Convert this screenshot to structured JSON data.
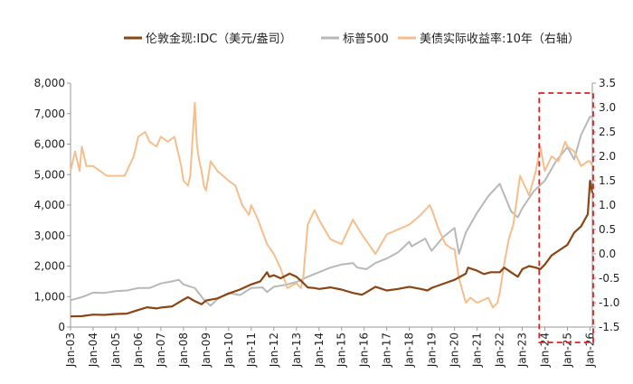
{
  "chart_data": {
    "type": "line",
    "title": "",
    "xlabel": "",
    "ylabel_left": "",
    "ylabel_right": "",
    "x_range": [
      2003.0,
      2026.1
    ],
    "ylim_left": [
      0,
      8000
    ],
    "ylim_right": [
      -1.5,
      3.5
    ],
    "left_ticks": [
      "0",
      "1,000",
      "2,000",
      "3,000",
      "4,000",
      "5,000",
      "6,000",
      "7,000",
      "8,000"
    ],
    "left_tick_values": [
      0,
      1000,
      2000,
      3000,
      4000,
      5000,
      6000,
      7000,
      8000
    ],
    "right_ticks": [
      "-1.5",
      "-1.0",
      "-0.5",
      "0.0",
      "0.5",
      "1.0",
      "1.5",
      "2.0",
      "2.5",
      "3.0",
      "3.5"
    ],
    "right_tick_values": [
      -1.5,
      -1.0,
      -0.5,
      0.0,
      0.5,
      1.0,
      1.5,
      2.0,
      2.5,
      3.0,
      3.5
    ],
    "x_ticks": [
      "Jan-03",
      "Jan-04",
      "Jan-05",
      "Jan-06",
      "Jan-07",
      "Jan-08",
      "Jan-09",
      "Jan-10",
      "Jan-11",
      "Jan-12",
      "Jan-13",
      "Jan-14",
      "Jan-15",
      "Jan-16",
      "Jan-17",
      "Jan-18",
      "Jan-19",
      "Jan-20",
      "Jan-21",
      "Jan-22",
      "Jan-23",
      "Jan-24",
      "Jan-25",
      "Jan-26"
    ],
    "x_tick_values": [
      2003,
      2004,
      2005,
      2006,
      2007,
      2008,
      2009,
      2010,
      2011,
      2012,
      2013,
      2014,
      2015,
      2016,
      2017,
      2018,
      2019,
      2020,
      2021,
      2022,
      2023,
      2024,
      2025,
      2026
    ],
    "legend_position": "top",
    "series": [
      {
        "name": "伦敦金现:IDC（美元/盎司）",
        "axis": "left",
        "color": "#8B4513",
        "x": [
          2003.0,
          2003.5,
          2004.0,
          2004.5,
          2005.0,
          2005.5,
          2006.0,
          2006.4,
          2006.8,
          2007.0,
          2007.5,
          2008.0,
          2008.2,
          2008.5,
          2008.8,
          2009.0,
          2009.5,
          2010.0,
          2010.5,
          2011.0,
          2011.4,
          2011.7,
          2011.8,
          2012.0,
          2012.3,
          2012.7,
          2013.0,
          2013.3,
          2013.5,
          2013.8,
          2014.0,
          2014.5,
          2015.0,
          2015.5,
          2015.9,
          2016.0,
          2016.5,
          2017.0,
          2017.5,
          2018.0,
          2018.5,
          2018.8,
          2019.0,
          2019.5,
          2020.0,
          2020.5,
          2020.6,
          2020.8,
          2021.0,
          2021.3,
          2021.6,
          2022.0,
          2022.2,
          2022.5,
          2022.8,
          2023.0,
          2023.3,
          2023.6,
          2023.8,
          2024.0,
          2024.3,
          2024.6,
          2025.0,
          2025.3,
          2025.6,
          2025.9,
          2026.0,
          2026.1
        ],
        "values": [
          350,
          360,
          410,
          400,
          430,
          440,
          560,
          650,
          610,
          640,
          680,
          900,
          980,
          850,
          750,
          870,
          940,
          1100,
          1230,
          1400,
          1500,
          1800,
          1650,
          1700,
          1600,
          1750,
          1650,
          1450,
          1300,
          1280,
          1250,
          1300,
          1230,
          1120,
          1060,
          1100,
          1320,
          1200,
          1250,
          1320,
          1250,
          1200,
          1290,
          1420,
          1550,
          1750,
          1950,
          1900,
          1850,
          1740,
          1800,
          1800,
          1950,
          1800,
          1650,
          1900,
          2000,
          1950,
          1900,
          2050,
          2350,
          2500,
          2700,
          3100,
          3300,
          3700,
          4800,
          4400
        ]
      },
      {
        "name": "标普500",
        "axis": "left",
        "color": "#B8B8B8",
        "x": [
          2003.0,
          2003.5,
          2004.0,
          2004.5,
          2005.0,
          2005.5,
          2006.0,
          2006.5,
          2007.0,
          2007.5,
          2007.8,
          2008.0,
          2008.5,
          2008.9,
          2009.2,
          2009.5,
          2010.0,
          2010.5,
          2011.0,
          2011.5,
          2011.7,
          2012.0,
          2012.5,
          2013.0,
          2013.5,
          2014.0,
          2014.5,
          2015.0,
          2015.5,
          2015.7,
          2016.1,
          2016.5,
          2017.0,
          2017.5,
          2018.0,
          2018.1,
          2018.7,
          2018.98,
          2019.5,
          2020.0,
          2020.2,
          2020.5,
          2021.0,
          2021.5,
          2022.0,
          2022.5,
          2022.8,
          2023.0,
          2023.5,
          2024.0,
          2024.5,
          2025.0,
          2025.3,
          2025.6,
          2026.0,
          2026.1
        ],
        "values": [
          880,
          980,
          1130,
          1120,
          1180,
          1200,
          1280,
          1280,
          1430,
          1500,
          1550,
          1400,
          1280,
          900,
          700,
          920,
          1120,
          1050,
          1280,
          1300,
          1150,
          1320,
          1380,
          1480,
          1650,
          1800,
          1950,
          2050,
          2100,
          1950,
          1900,
          2100,
          2250,
          2450,
          2800,
          2650,
          2900,
          2500,
          2950,
          3250,
          2400,
          3100,
          3750,
          4300,
          4700,
          3800,
          3600,
          3900,
          4450,
          4800,
          5450,
          5900,
          5500,
          6300,
          6900,
          6900
        ]
      },
      {
        "name": "美债实际收益率:10年（右轴）",
        "axis": "right",
        "color": "#F5BE8C",
        "x": [
          2003.0,
          2003.2,
          2003.4,
          2003.5,
          2003.7,
          2004.0,
          2004.3,
          2004.6,
          2005.0,
          2005.4,
          2005.8,
          2006.0,
          2006.3,
          2006.5,
          2006.8,
          2007.0,
          2007.3,
          2007.6,
          2007.9,
          2008.0,
          2008.2,
          2008.3,
          2008.5,
          2008.6,
          2008.7,
          2008.8,
          2008.9,
          2009.0,
          2009.2,
          2009.5,
          2010.0,
          2010.3,
          2010.6,
          2010.9,
          2011.0,
          2011.3,
          2011.7,
          2012.0,
          2012.3,
          2012.6,
          2013.0,
          2013.2,
          2013.3,
          2013.5,
          2013.8,
          2014.0,
          2014.5,
          2015.0,
          2015.5,
          2015.9,
          2016.2,
          2016.5,
          2017.0,
          2017.5,
          2018.0,
          2018.5,
          2018.9,
          2019.0,
          2019.3,
          2019.6,
          2019.9,
          2020.0,
          2020.2,
          2020.5,
          2020.7,
          2021.0,
          2021.5,
          2021.7,
          2021.9,
          2022.0,
          2022.2,
          2022.4,
          2022.6,
          2022.9,
          2023.0,
          2023.3,
          2023.6,
          2023.8,
          2024.0,
          2024.3,
          2024.6,
          2024.9,
          2025.0,
          2025.3,
          2025.6,
          2025.9,
          2026.0,
          2026.1
        ],
        "values": [
          1.7,
          2.1,
          1.7,
          2.2,
          1.8,
          1.8,
          1.7,
          1.6,
          1.6,
          1.6,
          2.0,
          2.4,
          2.5,
          2.3,
          2.2,
          2.4,
          2.3,
          2.4,
          1.8,
          1.5,
          1.4,
          1.6,
          3.1,
          2.2,
          1.9,
          1.7,
          1.4,
          1.3,
          1.9,
          1.7,
          1.5,
          1.4,
          1.0,
          0.8,
          1.0,
          0.7,
          0.2,
          0.0,
          -0.3,
          -0.7,
          -0.6,
          -0.7,
          -0.5,
          0.6,
          0.9,
          0.7,
          0.3,
          0.2,
          0.7,
          0.4,
          0.2,
          0.0,
          0.4,
          0.5,
          0.6,
          0.8,
          1.0,
          0.9,
          0.5,
          0.2,
          0.1,
          0.1,
          -0.5,
          -1.0,
          -0.9,
          -1.0,
          -0.9,
          -1.1,
          -1.0,
          -0.8,
          -0.2,
          0.3,
          0.6,
          1.6,
          1.5,
          1.2,
          1.7,
          2.2,
          1.7,
          2.0,
          1.9,
          2.3,
          2.2,
          2.1,
          1.8,
          1.9,
          1.9,
          1.8
        ]
      }
    ],
    "highlight_box": {
      "x_from": 2023.75,
      "x_to": 2026.1,
      "style": "red-dashed"
    }
  }
}
